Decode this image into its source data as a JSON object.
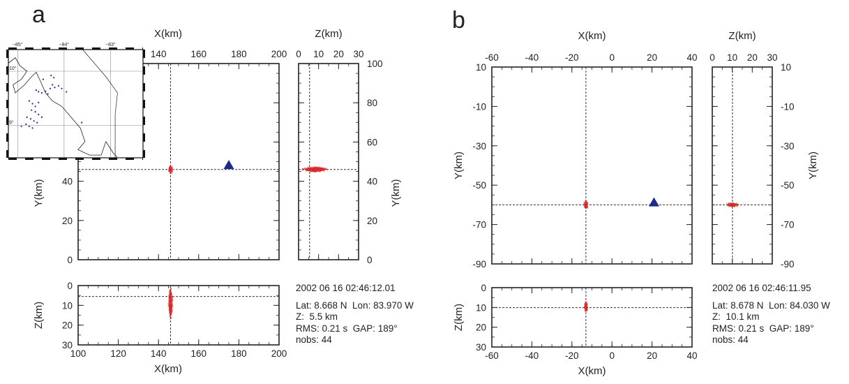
{
  "panels": [
    {
      "letter": "a",
      "info": {
        "datetime": "2002 06 16 02:46:12.01",
        "latlon": "Lat: 8.668 N  Lon: 83.970 W",
        "depth": "Z:  5.5 km",
        "rms_gap": "RMS: 0.21 s  GAP: 189°",
        "nobs": "nobs: 44"
      }
    },
    {
      "letter": "b",
      "info": {
        "datetime": "2002 06 16 02:46:11.95",
        "latlon": "Lat: 8.678 N  Lon: 84.030 W",
        "depth": "Z:  10.1 km",
        "rms_gap": "RMS: 0.21 s  GAP: 189°",
        "nobs": "nobs: 44"
      }
    }
  ],
  "chart_data": [
    {
      "type": "scatter",
      "panel": "a",
      "view": "map",
      "xlabel": "X(km)",
      "ylabel": "Y(km)",
      "xlim": [
        100,
        200
      ],
      "ylim": [
        0,
        100
      ],
      "xticks": [
        140,
        160,
        180,
        200
      ],
      "yticks": [
        0,
        20,
        40,
        60,
        80,
        100
      ],
      "yticks_labeled": [
        0,
        20,
        40
      ],
      "epicenter": {
        "x": 146,
        "y": 46
      },
      "station": {
        "x": 175,
        "y": 48
      },
      "marker_color": "#d62020",
      "station_color": "#1d2a8c"
    },
    {
      "type": "scatter",
      "panel": "a",
      "view": "z-section-y",
      "xlabel": "Z(km)",
      "ylabel": "Y(km)",
      "xlim": [
        0,
        30
      ],
      "ylim": [
        0,
        100
      ],
      "xticks": [
        0,
        10,
        20,
        30
      ],
      "yticks": [
        0,
        20,
        40,
        60,
        80,
        100
      ],
      "hypocenter": {
        "z": 5.5,
        "y": 46
      }
    },
    {
      "type": "scatter",
      "panel": "a",
      "view": "z-section-x",
      "xlabel": "X(km)",
      "ylabel": "Z(km)",
      "xlim": [
        100,
        200
      ],
      "ylim": [
        30,
        0
      ],
      "xticks": [
        100,
        120,
        140,
        160,
        180,
        200
      ],
      "yticks": [
        0,
        10,
        20,
        30
      ],
      "hypocenter": {
        "x": 146,
        "z": 5.5
      }
    },
    {
      "type": "scatter",
      "panel": "b",
      "view": "map",
      "xlabel": "X(km)",
      "ylabel": "Y(km)",
      "xlim": [
        -60,
        40
      ],
      "ylim": [
        -90,
        10
      ],
      "xticks": [
        -60,
        -40,
        -20,
        0,
        20,
        40
      ],
      "yticks": [
        -90,
        -70,
        -50,
        -30,
        -10,
        10
      ],
      "epicenter": {
        "x": -13,
        "y": -60
      },
      "station": {
        "x": 21,
        "y": -59
      }
    },
    {
      "type": "scatter",
      "panel": "b",
      "view": "z-section-y",
      "xlabel": "Z(km)",
      "ylabel": "Y(km)",
      "xlim": [
        0,
        30
      ],
      "ylim": [
        -90,
        10
      ],
      "xticks": [
        0,
        10,
        20,
        30
      ],
      "yticks": [
        -90,
        -70,
        -50,
        -30,
        -10,
        10
      ],
      "hypocenter": {
        "z": 10.1,
        "y": -60
      }
    },
    {
      "type": "scatter",
      "panel": "b",
      "view": "z-section-x",
      "xlabel": "X(km)",
      "ylabel": "Z(km)",
      "xlim": [
        -60,
        40
      ],
      "ylim": [
        30,
        0
      ],
      "xticks": [
        -60,
        -40,
        -20,
        0,
        20,
        40
      ],
      "yticks": [
        0,
        10,
        20,
        30
      ],
      "hypocenter": {
        "x": -13,
        "z": 10.1
      }
    }
  ],
  "inset_map": {
    "lon_labels": [
      "−85°",
      "−84°",
      "−83°"
    ],
    "lat_labels": [
      "10°",
      "9°"
    ],
    "station_dots": [
      [
        -84.45,
        9.85
      ],
      [
        -84.28,
        9.92
      ],
      [
        -84.22,
        9.88
      ],
      [
        -84.6,
        9.65
      ],
      [
        -84.55,
        9.62
      ],
      [
        -84.48,
        9.6
      ],
      [
        -84.4,
        9.63
      ],
      [
        -84.35,
        9.58
      ],
      [
        -84.75,
        9.45
      ],
      [
        -84.68,
        9.4
      ],
      [
        -84.62,
        9.35
      ],
      [
        -84.55,
        9.42
      ],
      [
        -84.7,
        9.28
      ],
      [
        -84.62,
        9.25
      ],
      [
        -84.55,
        9.2
      ],
      [
        -84.48,
        9.15
      ],
      [
        -84.8,
        9.15
      ],
      [
        -84.72,
        9.12
      ],
      [
        -84.65,
        9.08
      ],
      [
        -84.58,
        9.05
      ],
      [
        -84.82,
        9.02
      ],
      [
        -84.75,
        8.98
      ],
      [
        -84.68,
        8.95
      ],
      [
        -84.92,
        8.98
      ],
      [
        -84.25,
        9.75
      ],
      [
        -84.2,
        9.7
      ],
      [
        -84.12,
        9.73
      ],
      [
        -84.05,
        9.68
      ],
      [
        -83.95,
        9.62
      ],
      [
        -84.3,
        9.68
      ],
      [
        -83.62,
        9.05
      ]
    ],
    "dot_color": "#1d2a8c"
  }
}
